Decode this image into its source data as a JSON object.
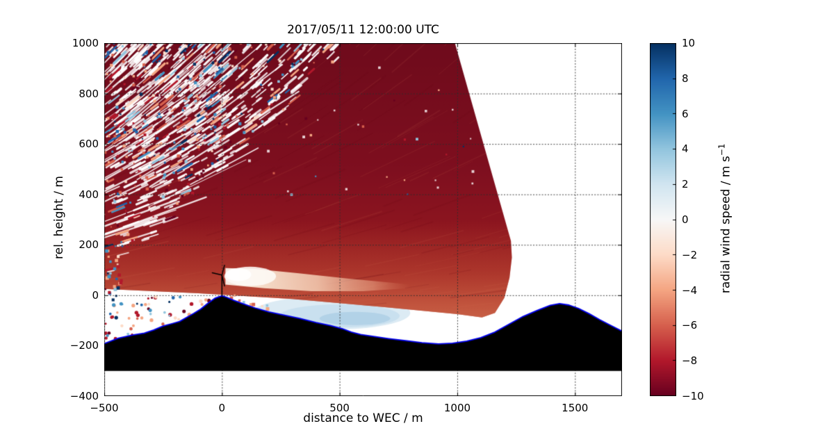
{
  "figure": {
    "title": "2017/05/11 12:00:00 UTC",
    "xlabel": "distance to WEC / m",
    "ylabel": "rel. height / m",
    "colorbar_label": "radial wind speed / m s",
    "colorbar_label_exponent": "−1"
  },
  "chart_data": {
    "type": "heatmap",
    "title": "2017/05/11 12:00:00 UTC",
    "xlabel": "distance to WEC / m",
    "ylabel": "rel. height / m",
    "xlim": [
      -500,
      1700
    ],
    "ylim": [
      -400,
      1000
    ],
    "xticks": [
      {
        "v": -500,
        "label": "−500"
      },
      {
        "v": 0,
        "label": "0"
      },
      {
        "v": 500,
        "label": "500"
      },
      {
        "v": 1000,
        "label": "1000"
      },
      {
        "v": 1500,
        "label": "1500"
      }
    ],
    "yticks": [
      {
        "v": -400,
        "label": "−400"
      },
      {
        "v": -200,
        "label": "−200"
      },
      {
        "v": 0,
        "label": "0"
      },
      {
        "v": 200,
        "label": "200"
      },
      {
        "v": 400,
        "label": "400"
      },
      {
        "v": 600,
        "label": "600"
      },
      {
        "v": 800,
        "label": "800"
      },
      {
        "v": 1000,
        "label": "1000"
      }
    ],
    "grid": {
      "visible": true,
      "style": "dotted",
      "color": "#2d2d2d"
    },
    "colorbar": {
      "label": "radial wind speed / m s−1",
      "vmin": -10,
      "vmax": 10,
      "ticks": [
        {
          "v": -10,
          "label": "−10"
        },
        {
          "v": -8,
          "label": "−8"
        },
        {
          "v": -6,
          "label": "−6"
        },
        {
          "v": -4,
          "label": "−4"
        },
        {
          "v": -2,
          "label": "−2"
        },
        {
          "v": 0,
          "label": "0"
        },
        {
          "v": 2,
          "label": "2"
        },
        {
          "v": 4,
          "label": "4"
        },
        {
          "v": 6,
          "label": "6"
        },
        {
          "v": 8,
          "label": "8"
        },
        {
          "v": 10,
          "label": "10"
        }
      ],
      "cmap": "RdBu",
      "stops": [
        "#67001f",
        "#b2182b",
        "#d6604d",
        "#f4a582",
        "#fddbc7",
        "#f7f7f7",
        "#d1e5f0",
        "#92c5de",
        "#4393c3",
        "#2166ac",
        "#053061"
      ]
    },
    "scan": {
      "kind": "lidar RHI fan of radial wind speed toward upwind sector",
      "fan_polygon": [
        [
          -500,
          25
        ],
        [
          -100,
          8
        ],
        [
          300,
          -15
        ],
        [
          700,
          -48
        ],
        [
          1000,
          -75
        ],
        [
          1105,
          -88
        ],
        [
          1160,
          -70
        ],
        [
          1200,
          -10
        ],
        [
          1222,
          70
        ],
        [
          1232,
          150
        ],
        [
          1228,
          215
        ],
        [
          990,
          1000
        ],
        [
          -500,
          1000
        ]
      ],
      "bulk_value": -9,
      "lower_band": {
        "y_range": [
          -100,
          280
        ],
        "value": -6
      },
      "wake": {
        "x_range": [
          15,
          780
        ],
        "y_range": [
          15,
          110
        ],
        "value": -1,
        "note": "pale low-speed wake downstream of turbine rotor"
      },
      "ground_patch": {
        "x_range": [
          130,
          800
        ],
        "y_range": [
          -135,
          -5
        ],
        "value": 2,
        "note": "light-blue positive-velocity patch hugging terrain"
      },
      "noise": {
        "region": "upper-left sector",
        "ray_angle_deg": 42,
        "values": "random speckle ±10 with white dropout gaps along beams"
      },
      "scatter_bottom_left": {
        "x_range": [
          -500,
          -60
        ],
        "y_range": [
          -210,
          10
        ],
        "values": "random ±10 clutter points"
      }
    },
    "terrain": {
      "fill": "#000000",
      "outline": "#0000ee",
      "base_y": -300,
      "profile": [
        [
          -500,
          -192
        ],
        [
          -440,
          -170
        ],
        [
          -380,
          -158
        ],
        [
          -330,
          -150
        ],
        [
          -290,
          -138
        ],
        [
          -250,
          -122
        ],
        [
          -210,
          -112
        ],
        [
          -180,
          -104
        ],
        [
          -150,
          -88
        ],
        [
          -120,
          -72
        ],
        [
          -90,
          -55
        ],
        [
          -60,
          -32
        ],
        [
          -30,
          -12
        ],
        [
          0,
          -2
        ],
        [
          20,
          -8
        ],
        [
          50,
          -20
        ],
        [
          90,
          -34
        ],
        [
          140,
          -50
        ],
        [
          200,
          -66
        ],
        [
          260,
          -78
        ],
        [
          330,
          -92
        ],
        [
          400,
          -108
        ],
        [
          460,
          -120
        ],
        [
          510,
          -132
        ],
        [
          550,
          -146
        ],
        [
          590,
          -156
        ],
        [
          650,
          -164
        ],
        [
          710,
          -172
        ],
        [
          780,
          -180
        ],
        [
          850,
          -188
        ],
        [
          920,
          -193
        ],
        [
          980,
          -190
        ],
        [
          1040,
          -182
        ],
        [
          1100,
          -168
        ],
        [
          1160,
          -146
        ],
        [
          1220,
          -115
        ],
        [
          1280,
          -84
        ],
        [
          1340,
          -60
        ],
        [
          1395,
          -40
        ],
        [
          1435,
          -33
        ],
        [
          1475,
          -39
        ],
        [
          1515,
          -52
        ],
        [
          1560,
          -73
        ],
        [
          1605,
          -97
        ],
        [
          1655,
          -121
        ],
        [
          1700,
          -142
        ]
      ]
    },
    "turbine": {
      "x": 0,
      "base_y": -2,
      "hub_height": 82,
      "blade_length": 42
    }
  },
  "palette": {
    "fan_dark_red": "#7e0f1f",
    "fan_light_red": "#d67a5a",
    "wake_light": "#faf2e9",
    "ground_patch_blue": "#dcebf4",
    "terrain_outline_blue": "#0000ee"
  }
}
